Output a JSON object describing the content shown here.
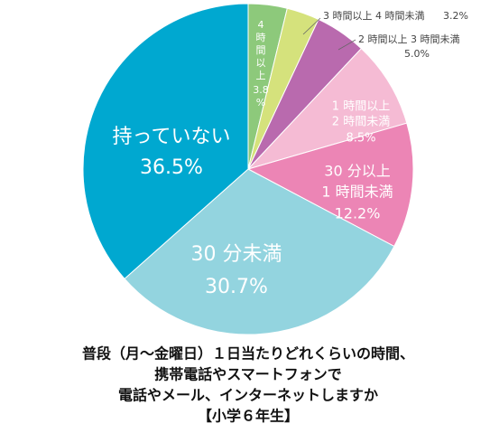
{
  "chart_data": {
    "type": "pie",
    "title": [
      "普段（月～金曜日）１日当たりどれくらいの時間、",
      "携帯電話やスマートフォンで",
      "電話やメール、インターネットしますか",
      "【小学６年生】"
    ],
    "categories": [
      [
        "4",
        "時",
        "間",
        "以",
        "上"
      ],
      [
        "3 時間以上 4 時間未満"
      ],
      [
        "2 時間以上 3 時間未満"
      ],
      [
        "1 時間以上",
        "2 時間未満"
      ],
      [
        "30 分以上",
        "1 時間未満"
      ],
      [
        "30 分未満"
      ],
      [
        "持っていない"
      ]
    ],
    "values": [
      3.8,
      3.2,
      5.0,
      8.5,
      12.2,
      30.7,
      36.5
    ],
    "value_labels": [
      [
        "3.8",
        "%"
      ],
      [
        "3.2%"
      ],
      [
        "5.0%"
      ],
      [
        "8.5%"
      ],
      [
        "12.2%"
      ],
      [
        "30.7%"
      ],
      [
        "36.5%"
      ]
    ],
    "colors": [
      "#8dc97b",
      "#d5e27c",
      "#b96aae",
      "#f5bbd4",
      "#ec85b5",
      "#93d4df",
      "#00a8d0"
    ]
  }
}
